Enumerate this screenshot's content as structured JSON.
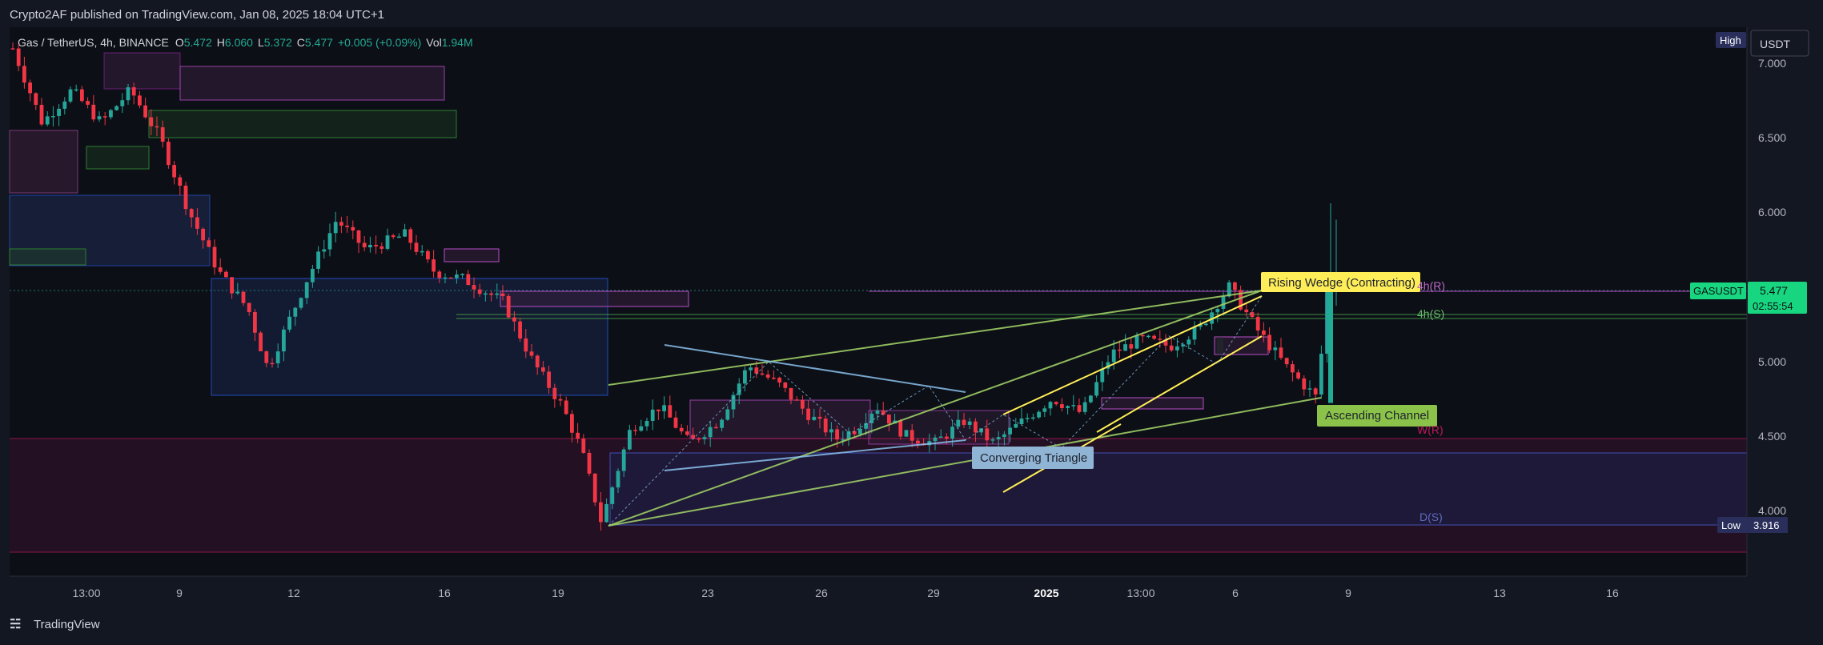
{
  "header": {
    "publisher": "Crypto2AF published on TradingView.com, Jan 08, 2025 18:04 UTC+1"
  },
  "legend": {
    "symbol": "Gas / TetherUS, 4h, BINANCE",
    "o_label": "O",
    "o_value": "5.472",
    "h_label": "H",
    "h_value": "6.060",
    "l_label": "L",
    "l_value": "5.372",
    "c_label": "C",
    "c_value": "5.477",
    "change": "+0.005 (+0.09%)",
    "vol_label": "Vol",
    "vol_value": "1.94M"
  },
  "price_scale": {
    "currency": "USDT",
    "high_label": "High",
    "low_label": "Low",
    "low_value": "3.916",
    "symbol_tag": "GASUSDT",
    "last_price": "5.477",
    "countdown": "02:55:54"
  },
  "footer": {
    "brand": "TradingView"
  },
  "colors": {
    "background": "#131722",
    "up": "#26a69a",
    "down": "#f23645",
    "up_bright": "#22ab94",
    "accent_green": "#17d67f",
    "accent_yellow": "#ffee58"
  },
  "chart_data": {
    "type": "candlestick",
    "symbol": "Gas / TetherUS",
    "interval": "4h",
    "exchange": "BINANCE",
    "ylim": [
      3.65,
      7.3
    ],
    "y_ticks": [
      "7.000",
      "6.500",
      "6.000",
      "5.500",
      "5.000",
      "4.500",
      "4.000"
    ],
    "x_ticks": [
      "13:00",
      "9",
      "12",
      "16",
      "19",
      "23",
      "26",
      "29",
      "2025",
      "13:00",
      "6",
      "9",
      "13",
      "16"
    ],
    "x_tick_bold": "2025",
    "ohlc_latest": {
      "open": 5.472,
      "high": 6.06,
      "low": 5.372,
      "close": 5.477
    },
    "period_high": 7.1,
    "period_low": 3.916,
    "price_path": [
      [
        7.1,
        0
      ],
      [
        6.6,
        0.03
      ],
      [
        6.82,
        0.06
      ],
      [
        6.6,
        0.09
      ],
      [
        6.82,
        0.12
      ],
      [
        6.5,
        0.15
      ],
      [
        6.0,
        0.18
      ],
      [
        5.6,
        0.21
      ],
      [
        5.35,
        0.24
      ],
      [
        4.95,
        0.26
      ],
      [
        5.55,
        0.3
      ],
      [
        5.95,
        0.33
      ],
      [
        5.75,
        0.36
      ],
      [
        5.85,
        0.4
      ],
      [
        5.6,
        0.43
      ],
      [
        5.55,
        0.46
      ],
      [
        5.4,
        0.5
      ],
      [
        5.0,
        0.53
      ],
      [
        4.7,
        0.56
      ],
      [
        4.4,
        0.58
      ],
      [
        3.92,
        0.6
      ],
      [
        4.55,
        0.63
      ],
      [
        4.7,
        0.66
      ],
      [
        4.45,
        0.69
      ],
      [
        4.6,
        0.72
      ],
      [
        4.97,
        0.75
      ],
      [
        4.85,
        0.78
      ],
      [
        4.65,
        0.81
      ],
      [
        4.48,
        0.84
      ],
      [
        4.55,
        0.86
      ],
      [
        4.7,
        0.88
      ],
      [
        4.5,
        0.91
      ],
      [
        4.45,
        0.94
      ],
      [
        4.6,
        0.97
      ],
      [
        4.45,
        1.0
      ],
      [
        4.6,
        1.03
      ],
      [
        4.75,
        1.06
      ],
      [
        4.65,
        1.09
      ],
      [
        5.05,
        1.12
      ],
      [
        5.15,
        1.15
      ],
      [
        5.1,
        1.18
      ],
      [
        5.22,
        1.21
      ],
      [
        5.5,
        1.24
      ],
      [
        5.2,
        1.27
      ],
      [
        4.95,
        1.3
      ],
      [
        4.75,
        1.33
      ],
      [
        5.477,
        1.34
      ]
    ],
    "zones": [
      {
        "label": "4h(R)",
        "level": 5.47
      },
      {
        "label": "4h(S)",
        "level": 5.3
      },
      {
        "label": "W(R)",
        "level": 4.49
      },
      {
        "label": "D(S)",
        "level": 3.92
      }
    ],
    "patterns": [
      {
        "name": "Rising Wedge (Contracting)"
      },
      {
        "name": "Ascending Channel"
      },
      {
        "name": "Converging Triangle"
      }
    ]
  }
}
